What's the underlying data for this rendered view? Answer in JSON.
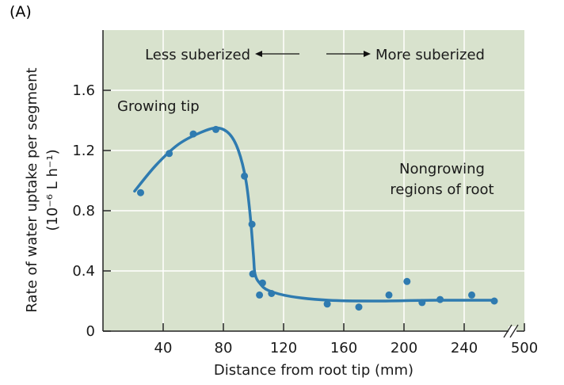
{
  "panel_label": "(A)",
  "chart_data": {
    "type": "scatter",
    "title": "",
    "xlabel": "Distance from root tip (mm)",
    "ylabel_line1": "Rate of water uptake per segment",
    "ylabel_line2": "(10⁻⁶ L h⁻¹)",
    "xlim": [
      0,
      280
    ],
    "ylim": [
      0,
      2.0
    ],
    "x_ticks": [
      40,
      80,
      120,
      160,
      200,
      240
    ],
    "x_tick_labels": [
      "40",
      "80",
      "120",
      "160",
      "200",
      "240"
    ],
    "x_break_label": "500",
    "y_ticks": [
      0,
      0.4,
      0.8,
      1.2,
      1.6
    ],
    "y_tick_labels": [
      "0",
      "0.4",
      "0.8",
      "1.2",
      "1.6"
    ],
    "grid": true,
    "annotations": {
      "less": "Less suberized",
      "more": "More suberized",
      "growing": "Growing tip",
      "nongrowing_line1": "Nongrowing",
      "nongrowing_line2": "regions of root"
    },
    "points": [
      [
        25,
        0.92
      ],
      [
        44,
        1.18
      ],
      [
        60,
        1.31
      ],
      [
        75,
        1.34
      ],
      [
        94,
        1.03
      ],
      [
        99,
        0.71
      ],
      [
        99.5,
        0.38
      ],
      [
        104,
        0.24
      ],
      [
        106,
        0.32
      ],
      [
        112,
        0.25
      ],
      [
        149,
        0.18
      ],
      [
        170,
        0.16
      ],
      [
        190,
        0.24
      ],
      [
        202,
        0.33
      ],
      [
        212,
        0.19
      ],
      [
        224,
        0.21
      ],
      [
        245,
        0.24
      ],
      [
        260,
        0.2
      ]
    ],
    "fit_curve": [
      [
        21,
        0.93
      ],
      [
        35,
        1.1
      ],
      [
        50,
        1.24
      ],
      [
        65,
        1.32
      ],
      [
        76,
        1.35
      ],
      [
        84,
        1.31
      ],
      [
        90,
        1.2
      ],
      [
        95,
        1.0
      ],
      [
        98,
        0.75
      ],
      [
        100,
        0.5
      ],
      [
        101,
        0.38
      ],
      [
        104,
        0.32
      ],
      [
        110,
        0.27
      ],
      [
        125,
        0.23
      ],
      [
        150,
        0.205
      ],
      [
        180,
        0.2
      ],
      [
        220,
        0.205
      ],
      [
        260,
        0.205
      ]
    ],
    "colors": {
      "plot_bg": "#d8e2cd",
      "series": "#2f7bb0",
      "grid": "#ffffff"
    }
  }
}
